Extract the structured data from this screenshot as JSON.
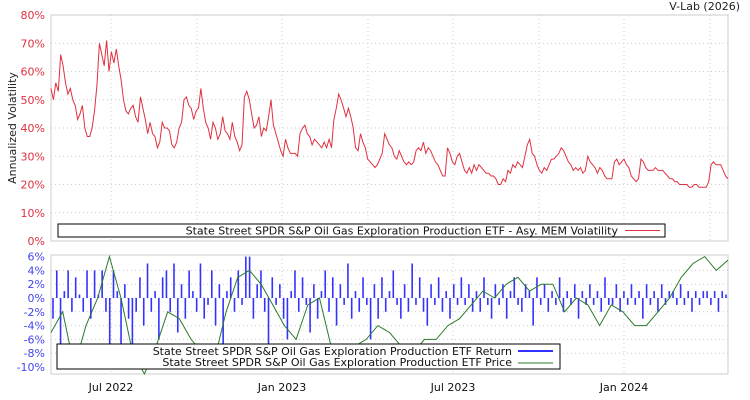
{
  "credit": "V-Lab (2026)",
  "colors": {
    "volatility": "#e03040",
    "returns": "#3333ff",
    "price": "#2a7a2a",
    "vol_axis": "#e03040",
    "ret_axis": "#4444ee"
  },
  "chart_data": [
    {
      "type": "line",
      "ylabel": "Annualized Volatility",
      "ylim": [
        0,
        80
      ],
      "yticks": [
        "0%",
        "10%",
        "20%",
        "30%",
        "40%",
        "50%",
        "60%",
        "70%",
        "80%"
      ],
      "grid": true,
      "legend": {
        "placement": "bottom",
        "label": "State Street SPDR S&P Oil  Gas Exploration  Production ETF - Asy. MEM Volatility"
      },
      "x_range": [
        "2022-05",
        "2024-04"
      ],
      "series": [
        {
          "name": "Asy. MEM Volatility",
          "values": [
            54,
            50,
            56,
            53,
            66,
            62,
            56,
            52,
            54,
            50,
            48,
            43,
            45,
            48,
            40,
            37,
            37,
            40,
            46,
            55,
            70,
            66,
            62,
            71,
            60,
            67,
            63,
            68,
            62,
            57,
            50,
            46,
            45,
            47,
            48,
            44,
            42,
            51,
            47,
            43,
            38,
            42,
            38,
            37,
            33,
            35,
            42,
            40,
            40,
            39,
            34,
            33,
            35,
            40,
            42,
            50,
            51,
            48,
            47,
            43,
            46,
            47,
            54,
            47,
            42,
            40,
            36,
            42,
            40,
            36,
            38,
            44,
            39,
            38,
            36,
            42,
            37,
            35,
            32,
            34,
            51,
            53,
            50,
            45,
            40,
            41,
            44,
            37,
            40,
            39,
            44,
            50,
            41,
            38,
            35,
            32,
            30,
            36,
            33,
            31,
            31,
            31,
            30,
            38,
            40,
            41,
            38,
            37,
            34,
            36,
            35,
            34,
            33,
            35,
            33,
            36,
            33,
            43,
            47,
            52,
            50,
            47,
            44,
            47,
            44,
            40,
            33,
            32,
            38,
            35,
            33,
            29,
            28,
            27,
            26,
            27,
            29,
            31,
            38,
            36,
            34,
            33,
            30,
            29,
            32,
            30,
            28,
            27,
            28,
            27,
            28,
            32,
            33,
            32,
            35,
            31,
            33,
            32,
            30,
            28,
            27,
            25,
            23,
            23,
            33,
            31,
            28,
            27,
            30,
            31,
            28,
            25,
            24,
            26,
            24,
            27,
            25,
            27,
            26,
            25,
            24,
            24,
            23,
            23,
            22,
            20,
            20,
            22,
            21,
            25,
            24,
            27,
            26,
            28,
            27,
            26,
            30,
            34,
            36,
            31,
            30,
            27,
            25,
            24,
            26,
            25,
            27,
            29,
            29,
            30,
            31,
            33,
            32,
            30,
            28,
            27,
            25,
            26,
            25,
            26,
            24,
            25,
            30,
            28,
            27,
            26,
            24,
            26,
            25,
            23,
            22,
            22,
            22,
            28,
            29,
            27,
            28,
            29,
            27,
            26,
            23,
            22,
            21,
            22,
            29,
            28,
            26,
            25,
            25,
            25,
            26,
            25,
            25,
            25,
            24,
            23,
            22,
            22,
            21,
            21,
            20,
            20,
            20,
            20,
            19,
            19,
            20,
            20,
            19,
            19,
            19,
            19,
            21,
            27,
            28,
            27,
            27,
            27,
            25,
            23,
            22
          ]
        }
      ]
    },
    {
      "type": "bar",
      "ylim": [
        -10,
        6
      ],
      "yticks": [
        "-10%",
        "-8%",
        "-6%",
        "-4%",
        "-2%",
        "0%",
        "2%",
        "4%",
        "6%"
      ],
      "xticks": [
        "Jul 2022",
        "Jan 2023",
        "Jul 2023",
        "Jan 2024"
      ],
      "grid": true,
      "legend": {
        "placement": "bottom-left",
        "labels": [
          "State Street SPDR S&P Oil  Gas Exploration  Production ETF Return",
          "State Street SPDR S&P Oil  Gas Exploration  Production ETF Price"
        ]
      },
      "series": [
        {
          "name": "Return",
          "type": "bar",
          "values": [
            -3,
            4,
            -10,
            1,
            4,
            -2,
            3,
            0.5,
            -2,
            4,
            -3,
            4,
            0.5,
            4,
            -2,
            -7,
            4,
            1,
            -9,
            2,
            -3,
            -10,
            -2,
            3,
            -4,
            5,
            -2,
            1,
            -6,
            3,
            4,
            -2,
            5,
            -5,
            2,
            -3,
            4,
            1,
            -2,
            5,
            -3,
            -1,
            4,
            -4,
            2,
            -7,
            1,
            3,
            -2,
            4,
            -1,
            6,
            6,
            -3,
            2,
            4,
            -2,
            -7,
            3,
            -1,
            2,
            -3,
            -6,
            1,
            4,
            -2,
            3,
            -1,
            -5,
            2,
            -3,
            1,
            4,
            -2,
            3,
            -4,
            2,
            -1,
            5,
            -3,
            1,
            -2,
            3,
            -1,
            -6,
            2,
            -3,
            3,
            -2,
            1,
            4,
            -1,
            -3,
            2,
            -2,
            5,
            -1,
            3,
            -2,
            -4,
            2,
            -1,
            3,
            -2,
            1,
            -3,
            2,
            -1,
            3,
            -1,
            2,
            -2,
            1,
            -2,
            3,
            -1,
            -3,
            2,
            -1,
            2,
            -3,
            1,
            3,
            -1,
            -2,
            2,
            1,
            -4,
            3,
            -1,
            2,
            -2,
            1,
            -1,
            3,
            -2,
            1,
            -1,
            2,
            -3,
            1,
            -1,
            2,
            -1,
            1,
            -2,
            3,
            -1,
            -1,
            2,
            -2,
            1,
            -1,
            2,
            -1,
            1,
            -3,
            2,
            -1,
            1,
            -2,
            2,
            -1,
            1,
            1,
            -1,
            2,
            -1,
            1,
            -2,
            1,
            -1,
            1,
            1,
            -1,
            1,
            -2,
            1,
            0.5
          ]
        },
        {
          "name": "Price",
          "type": "line",
          "values": [
            -5,
            -2,
            -10,
            -4,
            0,
            6,
            0,
            -8,
            -11,
            -7,
            -2,
            -3,
            -6,
            -8,
            -9,
            -2,
            3,
            4,
            2,
            -1,
            -4,
            -6,
            -1,
            0,
            -7,
            -7,
            -7,
            -6,
            -4,
            -5,
            -7,
            -8,
            -6,
            -6,
            -4,
            -3,
            -1,
            1,
            0,
            2,
            3,
            1,
            2,
            2,
            -2,
            0,
            -1,
            -4,
            -1,
            -2,
            -4,
            -4,
            -2,
            0,
            3,
            5,
            6,
            4,
            5.5
          ]
        }
      ]
    }
  ]
}
